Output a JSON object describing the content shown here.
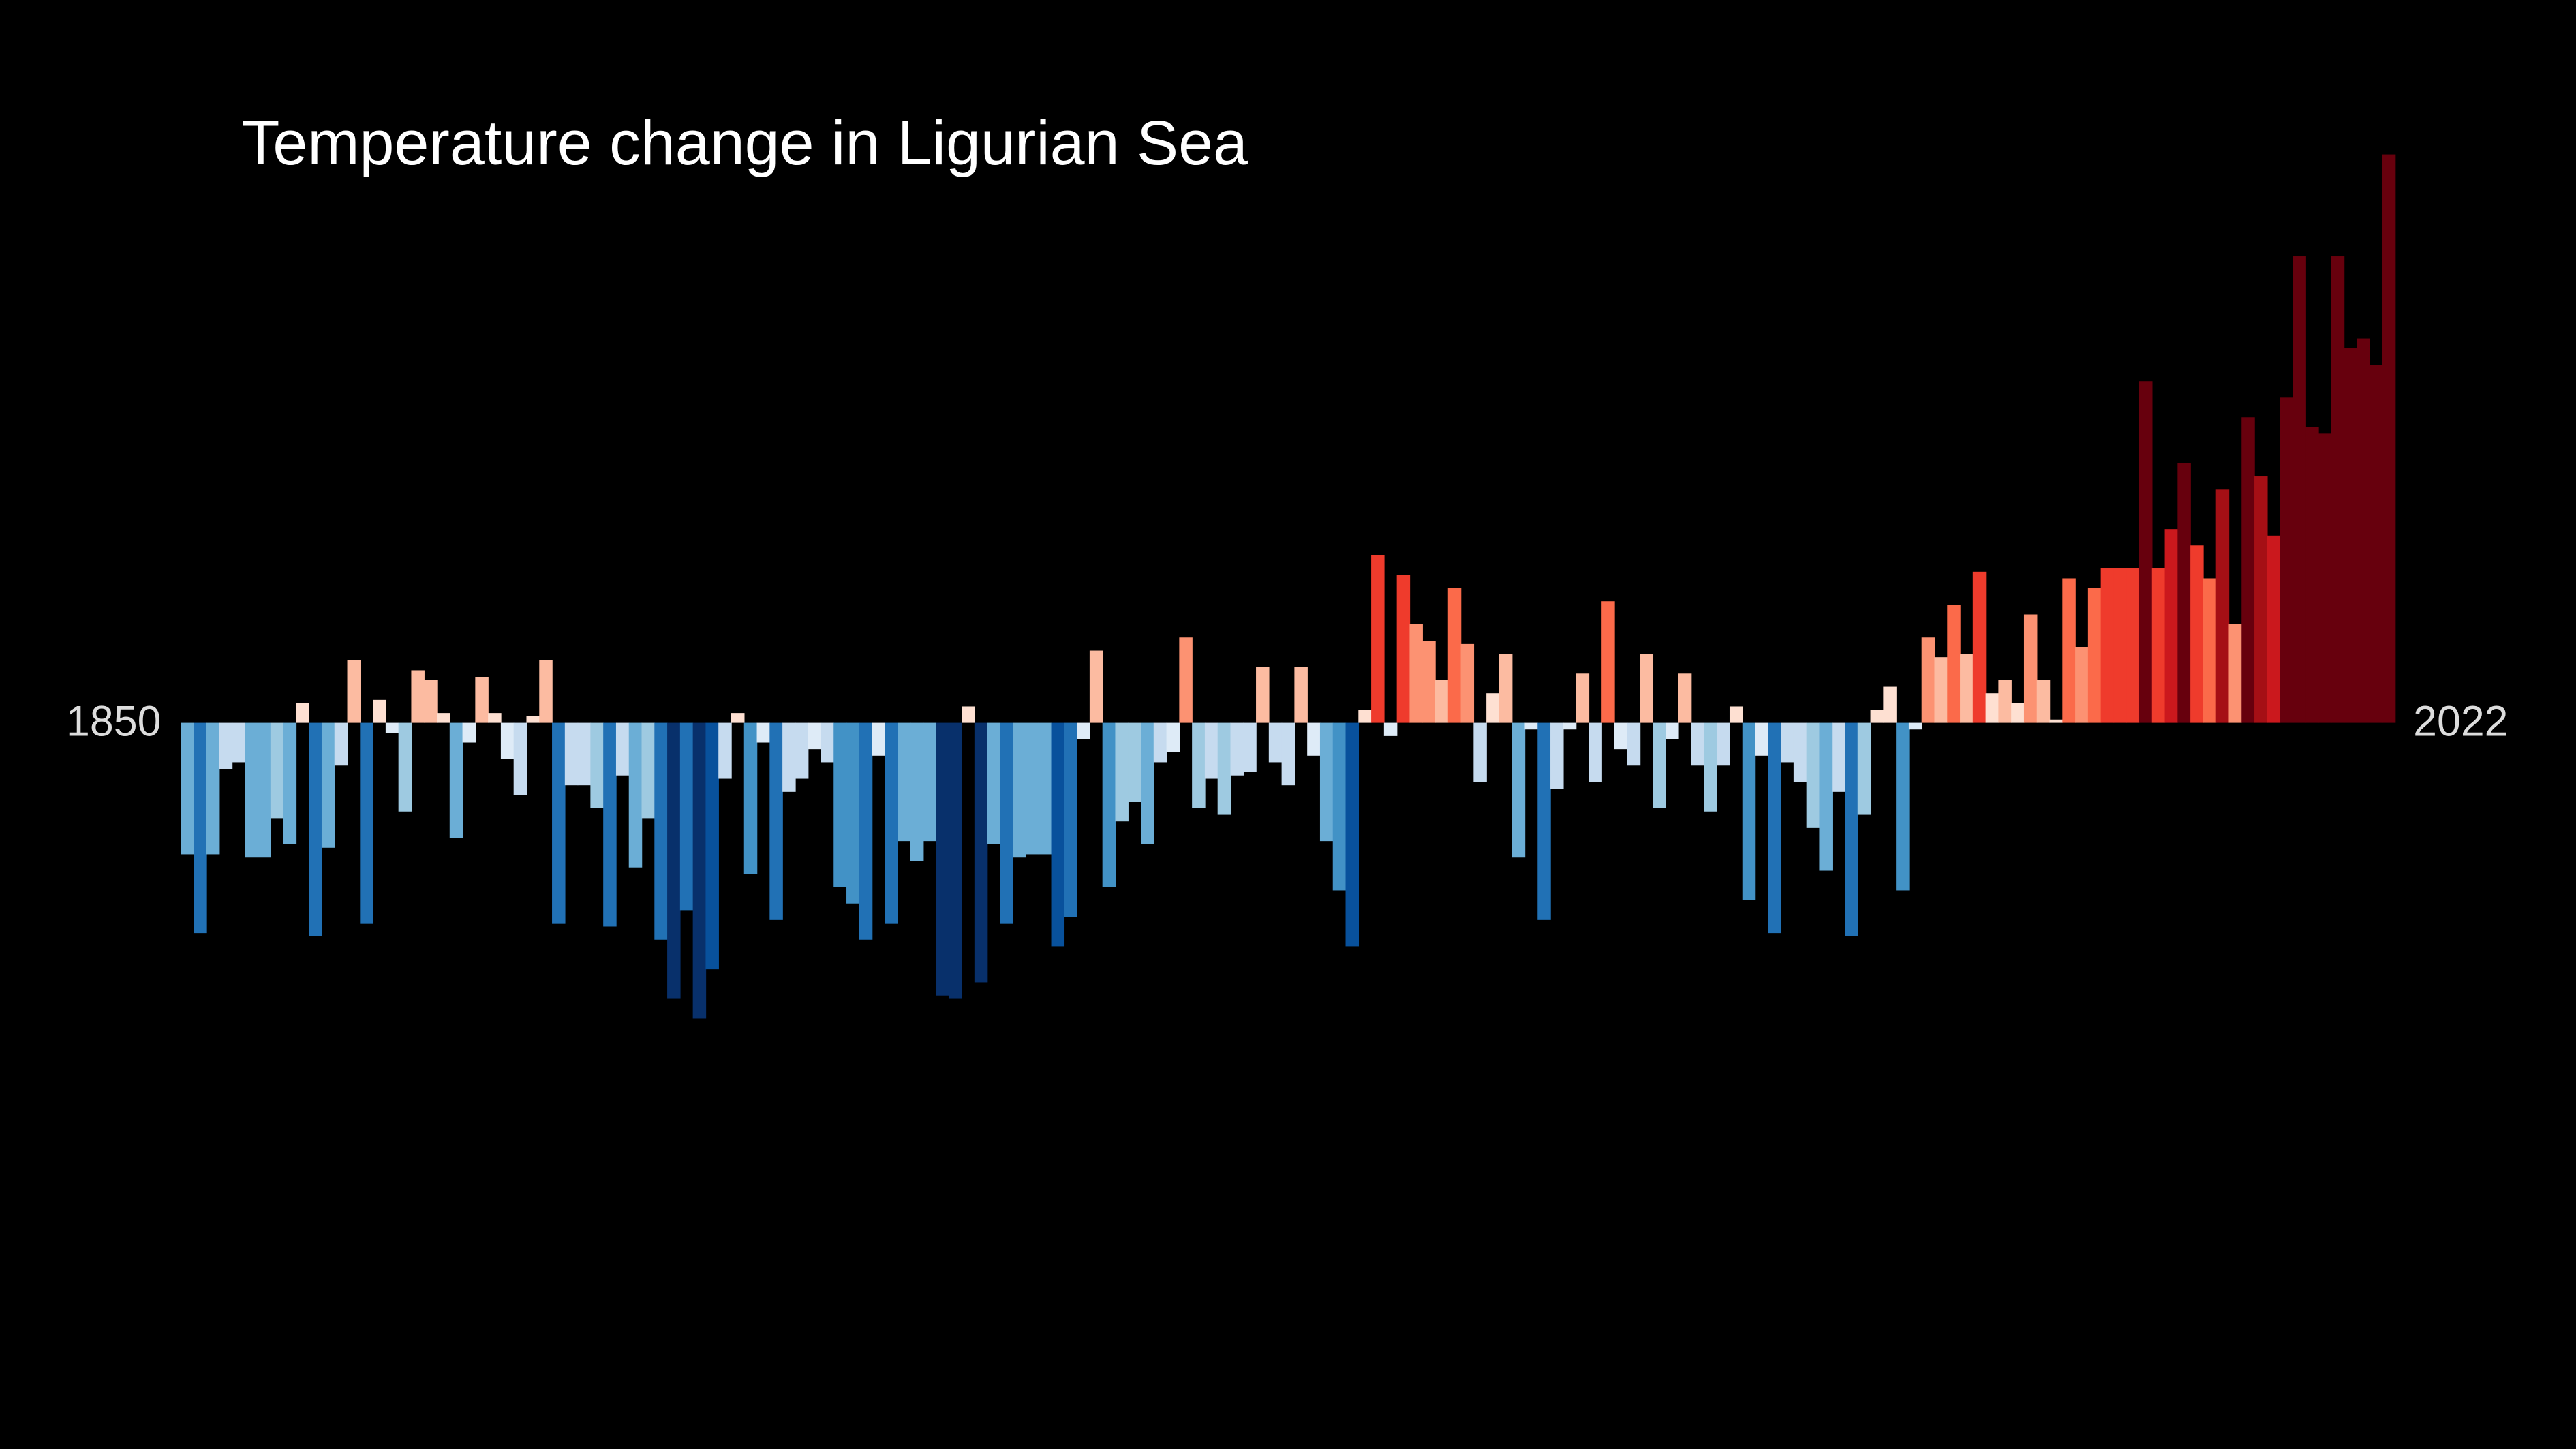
{
  "chart_data": {
    "type": "bar",
    "title": "Temperature change in Ligurian Sea",
    "xlim": [
      1850,
      2022
    ],
    "ylim": [
      -2.21,
      2.2
    ],
    "colors": [
      "#08306b",
      "#08519c",
      "#2171b5",
      "#4292c6",
      "#6baed6",
      "#9ecae1",
      "#c6dbef",
      "#deebf7",
      "#fee0d2",
      "#fcbba1",
      "#fc9272",
      "#fb6a4a",
      "#ef3b2c",
      "#cb181d",
      "#a50f15",
      "#67000d"
    ],
    "values": [
      -0.4,
      -0.64,
      -0.4,
      -0.14,
      -0.12,
      -0.41,
      -0.41,
      -0.29,
      -0.37,
      0.06,
      -0.65,
      -0.38,
      -0.13,
      0.19,
      -0.61,
      0.07,
      -0.03,
      -0.27,
      0.16,
      0.13,
      0.03,
      -0.35,
      -0.06,
      0.14,
      0.03,
      -0.11,
      -0.22,
      0.02,
      0.19,
      -0.61,
      -0.19,
      -0.19,
      -0.26,
      -0.62,
      -0.16,
      -0.44,
      -0.29,
      -0.66,
      -0.84,
      -0.57,
      -0.9,
      -0.75,
      -0.17,
      0.03,
      -0.46,
      -0.06,
      -0.6,
      -0.21,
      -0.17,
      -0.08,
      -0.12,
      -0.5,
      -0.55,
      -0.66,
      -0.1,
      -0.61,
      -0.36,
      -0.42,
      -0.36,
      -0.83,
      -0.84,
      0.05,
      -0.79,
      -0.37,
      -0.61,
      -0.41,
      -0.4,
      -0.4,
      -0.68,
      -0.59,
      -0.05,
      0.22,
      -0.5,
      -0.3,
      -0.24,
      -0.37,
      -0.12,
      -0.09,
      0.26,
      -0.26,
      -0.17,
      -0.28,
      -0.16,
      -0.15,
      0.17,
      -0.12,
      -0.19,
      0.17,
      -0.1,
      -0.36,
      -0.51,
      -0.68,
      0.04,
      0.51,
      -0.04,
      0.45,
      0.3,
      0.25,
      0.13,
      0.41,
      0.24,
      -0.18,
      0.09,
      0.21,
      -0.41,
      -0.02,
      -0.6,
      -0.2,
      -0.02,
      0.15,
      -0.18,
      0.37,
      -0.08,
      -0.13,
      0.21,
      -0.26,
      -0.05,
      0.15,
      -0.13,
      -0.27,
      -0.13,
      0.05,
      -0.54,
      -0.1,
      -0.64,
      -0.12,
      -0.18,
      -0.32,
      -0.45,
      -0.21,
      -0.65,
      -0.28,
      0.04,
      0.11,
      -0.51,
      -0.02,
      0.26,
      0.2,
      0.36,
      0.21,
      0.46,
      0.09,
      0.13,
      0.06,
      0.33,
      0.13,
      0.01,
      0.44,
      0.23,
      0.41,
      0.47,
      0.47,
      0.47,
      1.04,
      0.47,
      0.59,
      0.79,
      0.54,
      0.44,
      0.71,
      0.3,
      0.93,
      0.75,
      0.57,
      0.99,
      1.42,
      0.9,
      0.88,
      1.42,
      1.14,
      1.17,
      1.09,
      1.73
    ]
  }
}
